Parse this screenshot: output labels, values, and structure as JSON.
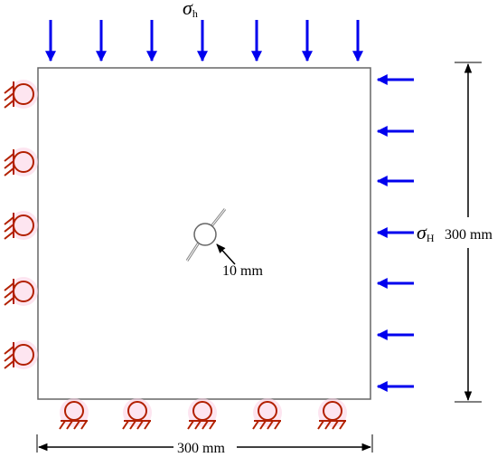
{
  "labels": {
    "sigma_h_symbol": "σ",
    "sigma_h_subscript": "h",
    "sigma_H_symbol": "σ",
    "sigma_H_subscript": "H",
    "height_dimension": "300 mm",
    "width_dimension": "300 mm",
    "hole_dimension": "10 mm"
  },
  "load": {
    "top_arrow_count": 7,
    "right_arrow_count": 7,
    "color": "#0000ee"
  },
  "supports": {
    "left_count": 5,
    "bottom_count": 5,
    "color": "#b22000",
    "highlight": "#fbd3e6"
  },
  "colors": {
    "outline": "#666666",
    "dimension": "#000000",
    "crack": "#888888"
  }
}
